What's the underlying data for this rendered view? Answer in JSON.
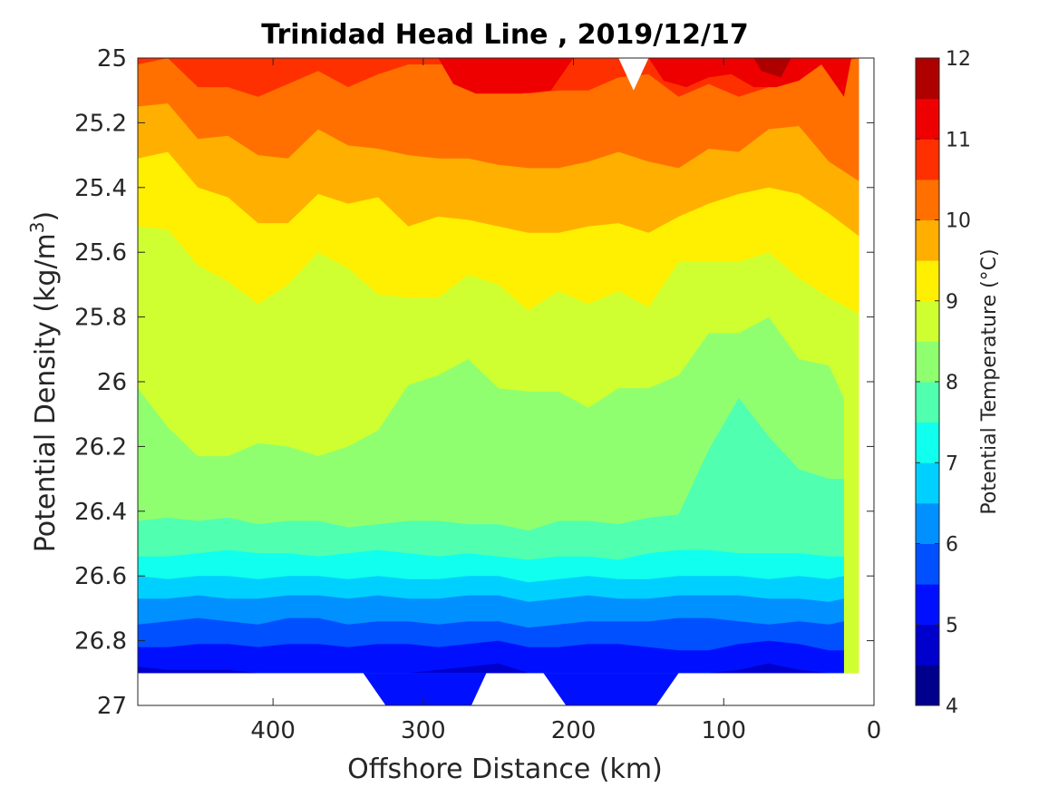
{
  "chart_data": {
    "type": "contour",
    "title": "Trinidad Head Line , 2019/12/17",
    "xlabel": "Offshore Distance (km)",
    "ylabel": "Potential Density (kg/m3)",
    "ylabel_parts": {
      "main": "Potential Density (kg/m",
      "sup": "3",
      "close": ")"
    },
    "colorbar_label": "Potential Temperature (°C)",
    "xlim": [
      490,
      0
    ],
    "ylim": [
      25,
      27
    ],
    "x_reversed": true,
    "y_reversed": true,
    "x_ticks": [
      400,
      300,
      200,
      100,
      0
    ],
    "x_tick_labels": [
      "400",
      "300",
      "200",
      "100",
      "0"
    ],
    "y_ticks": [
      25,
      25.2,
      25.4,
      25.6,
      25.8,
      26,
      26.2,
      26.4,
      26.6,
      26.8,
      27
    ],
    "y_tick_labels": [
      "25",
      "25.2",
      "25.4",
      "25.6",
      "25.8",
      "26",
      "26.2",
      "26.4",
      "26.6",
      "26.8",
      "27"
    ],
    "colorbar_ticks": [
      "4",
      "5",
      "6",
      "7",
      "8",
      "9",
      "10",
      "11",
      "12"
    ],
    "color_levels": [
      {
        "min": 4,
        "max": 4.5,
        "color": "#00008c"
      },
      {
        "min": 4.5,
        "max": 5,
        "color": "#0000cc"
      },
      {
        "min": 5,
        "max": 5.5,
        "color": "#0010ff"
      },
      {
        "min": 5.5,
        "max": 6,
        "color": "#0050ff"
      },
      {
        "min": 6,
        "max": 6.5,
        "color": "#0090ff"
      },
      {
        "min": 6.5,
        "max": 7,
        "color": "#00d0ff"
      },
      {
        "min": 7,
        "max": 7.5,
        "color": "#10ffef"
      },
      {
        "min": 7.5,
        "max": 8,
        "color": "#50ffaf"
      },
      {
        "min": 8,
        "max": 8.5,
        "color": "#90ff6f"
      },
      {
        "min": 8.5,
        "max": 9,
        "color": "#cfff30"
      },
      {
        "min": 9,
        "max": 9.5,
        "color": "#ffef00"
      },
      {
        "min": 9.5,
        "max": 10,
        "color": "#ffaf00"
      },
      {
        "min": 10,
        "max": 10.5,
        "color": "#ff7000"
      },
      {
        "min": 10.5,
        "max": 11,
        "color": "#ff3000"
      },
      {
        "min": 11,
        "max": 11.5,
        "color": "#ef0000"
      },
      {
        "min": 11.5,
        "max": 12,
        "color": "#af0000"
      }
    ],
    "data_extent_x": [
      490,
      10
    ],
    "data_bottom_density": 26.9,
    "isotherms": [
      {
        "level": 10.5,
        "x": [
          490,
          470,
          450,
          430,
          410,
          390,
          370,
          350,
          330,
          310,
          290,
          270,
          250,
          230,
          210,
          190,
          170,
          150,
          130,
          110,
          90,
          70,
          50,
          30,
          10
        ],
        "y": [
          25.02,
          25.0,
          25.09,
          25.09,
          25.12,
          25.08,
          25.04,
          25.09,
          25.05,
          25.02,
          25.02,
          25.02,
          25.09,
          25.11,
          25.1,
          25.1,
          25.06,
          25.05,
          25.12,
          25.08,
          25.12,
          25.09,
          25.02,
          25.02,
          25.0
        ]
      },
      {
        "level": 10,
        "x": [
          490,
          470,
          450,
          430,
          410,
          390,
          370,
          350,
          330,
          310,
          290,
          270,
          250,
          230,
          210,
          190,
          170,
          150,
          130,
          110,
          90,
          70,
          50,
          30,
          10
        ],
        "y": [
          25.15,
          25.14,
          25.25,
          25.24,
          25.3,
          25.31,
          25.22,
          25.27,
          25.28,
          25.3,
          25.31,
          25.31,
          25.33,
          25.34,
          25.34,
          25.32,
          25.29,
          25.32,
          25.34,
          25.28,
          25.29,
          25.22,
          25.21,
          25.32,
          25.38
        ]
      },
      {
        "level": 9.5,
        "x": [
          490,
          470,
          450,
          430,
          410,
          390,
          370,
          350,
          330,
          310,
          290,
          270,
          250,
          230,
          210,
          190,
          170,
          150,
          130,
          110,
          90,
          70,
          50,
          30,
          10
        ],
        "y": [
          25.31,
          25.29,
          25.4,
          25.43,
          25.51,
          25.51,
          25.42,
          25.45,
          25.43,
          25.52,
          25.49,
          25.5,
          25.52,
          25.54,
          25.54,
          25.52,
          25.51,
          25.54,
          25.49,
          25.45,
          25.42,
          25.4,
          25.42,
          25.48,
          25.55
        ]
      },
      {
        "level": 9,
        "x": [
          490,
          470,
          450,
          430,
          410,
          390,
          370,
          350,
          330,
          310,
          290,
          270,
          250,
          230,
          210,
          190,
          170,
          150,
          130,
          110,
          90,
          70,
          50,
          30,
          10
        ],
        "y": [
          25.52,
          25.53,
          25.64,
          25.69,
          25.76,
          25.7,
          25.6,
          25.65,
          25.73,
          25.74,
          25.74,
          25.67,
          25.7,
          25.78,
          25.72,
          25.76,
          25.72,
          25.77,
          25.63,
          25.63,
          25.63,
          25.6,
          25.68,
          25.74,
          25.79
        ]
      },
      {
        "level": 8.5,
        "x": [
          490,
          470,
          450,
          430,
          410,
          390,
          370,
          350,
          330,
          310,
          290,
          270,
          250,
          230,
          210,
          190,
          170,
          150,
          130,
          110,
          90,
          70,
          50,
          30,
          20
        ],
        "y": [
          26.02,
          26.14,
          26.23,
          26.23,
          26.19,
          26.2,
          26.23,
          26.2,
          26.15,
          26.01,
          25.98,
          25.93,
          26.02,
          26.03,
          26.03,
          26.08,
          26.02,
          26.02,
          25.98,
          25.85,
          25.85,
          25.8,
          25.93,
          25.95,
          26.05
        ]
      },
      {
        "level": 8,
        "x": [
          490,
          470,
          450,
          430,
          410,
          390,
          370,
          350,
          330,
          310,
          290,
          270,
          250,
          230,
          210,
          190,
          170,
          150,
          130,
          110,
          90,
          70,
          50,
          30,
          20
        ],
        "y": [
          26.43,
          26.42,
          26.43,
          26.42,
          26.44,
          26.43,
          26.43,
          26.45,
          26.44,
          26.43,
          26.43,
          26.44,
          26.44,
          26.46,
          26.43,
          26.43,
          26.44,
          26.42,
          26.41,
          26.21,
          26.05,
          26.17,
          26.27,
          26.3,
          26.3
        ]
      },
      {
        "level": 7.5,
        "x": [
          490,
          470,
          450,
          430,
          410,
          390,
          370,
          350,
          330,
          310,
          290,
          270,
          250,
          230,
          210,
          190,
          170,
          150,
          130,
          110,
          90,
          70,
          50,
          30,
          20
        ],
        "y": [
          26.54,
          26.54,
          26.53,
          26.52,
          26.53,
          26.53,
          26.54,
          26.53,
          26.52,
          26.53,
          26.54,
          26.53,
          26.54,
          26.55,
          26.54,
          26.54,
          26.55,
          26.53,
          26.52,
          26.52,
          26.53,
          26.53,
          26.53,
          26.54,
          26.54
        ]
      },
      {
        "level": 7,
        "x": [
          490,
          470,
          450,
          430,
          410,
          390,
          370,
          350,
          330,
          310,
          290,
          270,
          250,
          230,
          210,
          190,
          170,
          150,
          130,
          110,
          90,
          70,
          50,
          30,
          20
        ],
        "y": [
          26.6,
          26.61,
          26.6,
          26.6,
          26.61,
          26.6,
          26.6,
          26.61,
          26.6,
          26.61,
          26.61,
          26.6,
          26.6,
          26.62,
          26.61,
          26.6,
          26.61,
          26.61,
          26.6,
          26.6,
          26.6,
          26.61,
          26.6,
          26.61,
          26.6
        ]
      },
      {
        "level": 6.5,
        "x": [
          490,
          470,
          450,
          430,
          410,
          390,
          370,
          350,
          330,
          310,
          290,
          270,
          250,
          230,
          210,
          190,
          170,
          150,
          130,
          110,
          90,
          70,
          50,
          30,
          20
        ],
        "y": [
          26.67,
          26.67,
          26.66,
          26.67,
          26.67,
          26.66,
          26.66,
          26.67,
          26.66,
          26.67,
          26.67,
          26.66,
          26.66,
          26.68,
          26.67,
          26.66,
          26.67,
          26.67,
          26.66,
          26.66,
          26.66,
          26.67,
          26.67,
          26.68,
          26.67
        ]
      },
      {
        "level": 6,
        "x": [
          490,
          470,
          450,
          430,
          410,
          390,
          370,
          350,
          330,
          310,
          290,
          270,
          250,
          230,
          210,
          190,
          170,
          150,
          130,
          110,
          90,
          70,
          50,
          30,
          20
        ],
        "y": [
          26.75,
          26.74,
          26.73,
          26.74,
          26.75,
          26.73,
          26.73,
          26.75,
          26.74,
          26.74,
          26.75,
          26.74,
          26.74,
          26.76,
          26.75,
          26.74,
          26.74,
          26.74,
          26.73,
          26.73,
          26.74,
          26.75,
          26.74,
          26.75,
          26.74
        ]
      },
      {
        "level": 5.5,
        "x": [
          490,
          470,
          450,
          430,
          410,
          390,
          370,
          350,
          330,
          310,
          290,
          270,
          250,
          230,
          210,
          190,
          170,
          150,
          130,
          110,
          90,
          70,
          50,
          30,
          20
        ],
        "y": [
          26.82,
          26.82,
          26.81,
          26.81,
          26.82,
          26.81,
          26.81,
          26.82,
          26.81,
          26.81,
          26.82,
          26.81,
          26.8,
          26.82,
          26.82,
          26.81,
          26.81,
          26.82,
          26.83,
          26.83,
          26.81,
          26.8,
          26.81,
          26.83,
          26.83
        ]
      },
      {
        "level": 5,
        "x": [
          490,
          470,
          450,
          430,
          410,
          390,
          370,
          350,
          330,
          310,
          290,
          270,
          250,
          230,
          210,
          190,
          170,
          150,
          130,
          110,
          90,
          70,
          50,
          30,
          20
        ],
        "y": [
          26.88,
          26.89,
          26.89,
          26.89,
          26.9,
          26.9,
          26.9,
          26.9,
          26.9,
          26.9,
          26.89,
          26.88,
          26.87,
          26.9,
          26.9,
          26.9,
          26.9,
          26.9,
          26.9,
          26.9,
          26.89,
          26.87,
          26.89,
          26.9,
          26.9
        ]
      }
    ],
    "warm_patches": [
      {
        "level": 11,
        "x": [
          290,
          280,
          265,
          250,
          235,
          215,
          200
        ],
        "y": [
          25.0,
          25.08,
          25.11,
          25.11,
          25.11,
          25.1,
          25.0
        ]
      },
      {
        "level": 11,
        "x": [
          150,
          140,
          125,
          110,
          95,
          80,
          65,
          50,
          35,
          20,
          15
        ],
        "y": [
          25.0,
          25.07,
          25.09,
          25.06,
          25.05,
          25.09,
          25.09,
          25.07,
          25.02,
          25.12,
          25.0
        ]
      },
      {
        "level": 11.5,
        "x": [
          80,
          75,
          62,
          55
        ],
        "y": [
          25.0,
          25.04,
          25.06,
          25.0
        ]
      }
    ],
    "deep_patches": [
      {
        "level": 5,
        "x": [
          340,
          325,
          310,
          295,
          280,
          268,
          258
        ],
        "y": [
          26.9,
          27.0,
          27.0,
          27.0,
          27.0,
          27.0,
          26.9
        ]
      },
      {
        "level": 5,
        "x": [
          220,
          205,
          190,
          175,
          160,
          145,
          130
        ],
        "y": [
          26.9,
          27.0,
          27.0,
          27.0,
          27.0,
          27.0,
          26.9
        ]
      }
    ]
  }
}
